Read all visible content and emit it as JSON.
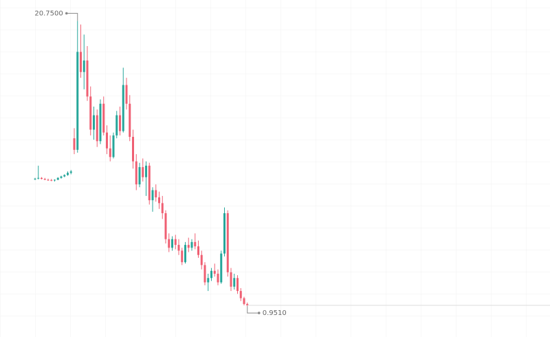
{
  "chart_data": {
    "type": "candlestick",
    "open": [
      9.75,
      9.8,
      9.85,
      9.78,
      9.72,
      9.7,
      9.68,
      9.72,
      9.85,
      9.95,
      10.05,
      10.2,
      12.6,
      11.8,
      18.6,
      17.2,
      18.0,
      15.5,
      13.2,
      14.2,
      12.4,
      15.0,
      13.0,
      11.9,
      11.3,
      12.8,
      14.2,
      13.1,
      16.3,
      15.0,
      12.7,
      11.0,
      9.4,
      10.6,
      9.9,
      10.7,
      8.3,
      9.0,
      8.5,
      8.1,
      7.4,
      5.6,
      5.0,
      5.6,
      5.2,
      4.8,
      4.0,
      5.2,
      5.0,
      5.4,
      5.1,
      4.5,
      3.8,
      2.6,
      2.9,
      3.4,
      3.2,
      2.6,
      4.6,
      7.4,
      3.3,
      2.3,
      2.9,
      2.0,
      1.5,
      1.1
    ],
    "high": [
      9.85,
      10.7,
      9.9,
      9.85,
      9.8,
      9.78,
      9.75,
      9.9,
      10.0,
      10.1,
      10.3,
      10.4,
      13.3,
      20.75,
      20.5,
      19.8,
      19.0,
      16.2,
      14.8,
      14.6,
      15.3,
      15.5,
      13.5,
      12.8,
      13.0,
      14.5,
      14.8,
      17.5,
      16.8,
      15.6,
      13.2,
      11.5,
      10.9,
      11.2,
      11.0,
      10.9,
      9.2,
      9.4,
      8.9,
      8.6,
      7.6,
      6.0,
      5.8,
      5.9,
      5.6,
      5.0,
      5.4,
      5.7,
      5.6,
      6.0,
      5.5,
      4.8,
      4.0,
      3.2,
      3.6,
      3.9,
      3.5,
      4.8,
      7.8,
      7.6,
      3.6,
      3.2,
      3.1,
      2.2,
      1.6,
      1.2
    ],
    "low": [
      9.7,
      9.75,
      9.75,
      9.7,
      9.65,
      9.62,
      9.6,
      9.7,
      9.8,
      9.9,
      10.0,
      10.1,
      11.5,
      11.6,
      16.8,
      16.0,
      15.2,
      12.8,
      12.5,
      12.0,
      12.2,
      12.8,
      11.5,
      11.0,
      11.2,
      12.6,
      12.8,
      13.0,
      14.6,
      12.4,
      10.5,
      9.0,
      9.2,
      9.6,
      8.6,
      8.0,
      7.5,
      8.2,
      7.7,
      7.0,
      5.3,
      4.7,
      4.8,
      4.9,
      4.5,
      3.8,
      3.9,
      4.7,
      4.8,
      4.9,
      4.3,
      3.5,
      2.4,
      2.0,
      2.7,
      3.0,
      2.4,
      2.5,
      4.4,
      3.0,
      2.0,
      2.1,
      1.8,
      1.3,
      1.0,
      0.951
    ],
    "close": [
      9.8,
      9.85,
      9.78,
      9.72,
      9.7,
      9.68,
      9.72,
      9.85,
      9.95,
      10.05,
      10.2,
      10.3,
      11.8,
      18.6,
      17.2,
      18.0,
      15.5,
      13.2,
      14.2,
      12.4,
      15.0,
      13.0,
      11.9,
      11.3,
      12.8,
      14.2,
      13.1,
      16.3,
      15.0,
      12.7,
      11.0,
      9.4,
      10.6,
      9.9,
      10.7,
      8.3,
      9.0,
      8.5,
      8.1,
      7.4,
      5.6,
      5.0,
      5.6,
      5.2,
      4.8,
      4.0,
      5.2,
      5.0,
      5.4,
      5.1,
      4.5,
      3.8,
      2.6,
      2.9,
      3.4,
      3.2,
      2.6,
      4.6,
      7.4,
      3.3,
      2.3,
      2.9,
      2.0,
      1.5,
      1.1,
      1.0
    ],
    "up_color": "#26a69a",
    "down_color": "#ef5f72",
    "ylim": [
      0,
      22.2
    ],
    "annotations": [
      {
        "value": 20.75,
        "label": "20.7500"
      },
      {
        "value": 0.951,
        "label": "0.9510"
      }
    ]
  }
}
